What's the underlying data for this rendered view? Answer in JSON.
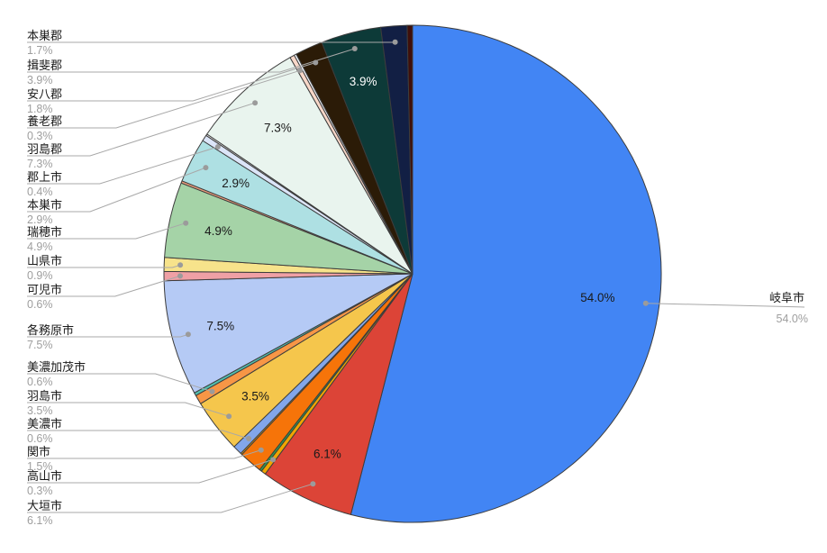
{
  "chart_data": {
    "type": "pie",
    "unit": "%",
    "background": "#ffffff",
    "direction": "clockwise",
    "start_angle_deg": 0,
    "legend_style": "labeled-leader-lines",
    "leader_line_color": "#a8a8a8",
    "leader_dot_color": "#9b9b9b",
    "name_text_color": "#1a1a1a",
    "percent_text_color": "#9e9e9e",
    "slice_border_color": "#3d3d3d",
    "slices": [
      {
        "name": "岐阜市",
        "percent_text": "54.0%",
        "value": 54.0,
        "color": "#4285f4",
        "inside_label": "54.0%",
        "inside_label_color": "#1a1a1a",
        "label_side": "right"
      },
      {
        "name": "大垣市",
        "percent_text": "6.1%",
        "value": 6.1,
        "color": "#dc4437",
        "inside_label": "6.1%",
        "inside_label_color": "#1a1a1a",
        "label_side": "left"
      },
      {
        "name": "高山市",
        "percent_text": "0.3%",
        "value": 0.3,
        "color": "#f0a500",
        "inside_label": "",
        "inside_label_color": "",
        "label_side": "left"
      },
      {
        "name": "",
        "percent_text": "",
        "value": 0.15,
        "color": "#2f9e4e",
        "inside_label": "",
        "inside_label_color": "",
        "label_side": null
      },
      {
        "name": "関市",
        "percent_text": "1.5%",
        "value": 1.5,
        "color": "#f67409",
        "inside_label": "",
        "inside_label_color": "",
        "label_side": "left"
      },
      {
        "name": "",
        "percent_text": "",
        "value": 0.1,
        "color": "#eda514",
        "inside_label": "",
        "inside_label_color": "",
        "label_side": null
      },
      {
        "name": "美濃市",
        "percent_text": "0.6%",
        "value": 0.6,
        "color": "#82a6ea",
        "inside_label": "",
        "inside_label_color": "",
        "label_side": "left"
      },
      {
        "name": "羽島市",
        "percent_text": "3.5%",
        "value": 3.5,
        "color": "#f5c64c",
        "inside_label": "3.5%",
        "inside_label_color": "#1a1a1a",
        "label_side": "left"
      },
      {
        "name": "美濃加茂市",
        "percent_text": "0.6%",
        "value": 0.6,
        "color": "#f79646",
        "inside_label": "",
        "inside_label_color": "",
        "label_side": "left"
      },
      {
        "name": "",
        "percent_text": "",
        "value": 0.2,
        "color": "#52bfae",
        "inside_label": "",
        "inside_label_color": "",
        "label_side": null
      },
      {
        "name": "各務原市",
        "percent_text": "7.5%",
        "value": 7.5,
        "color": "#b5caf5",
        "inside_label": "7.5%",
        "inside_label_color": "#1a1a1a",
        "label_side": "left"
      },
      {
        "name": "可児市",
        "percent_text": "0.6%",
        "value": 0.6,
        "color": "#efa0a5",
        "inside_label": "",
        "inside_label_color": "",
        "label_side": "left"
      },
      {
        "name": "山県市",
        "percent_text": "0.9%",
        "value": 0.9,
        "color": "#f7e38b",
        "inside_label": "",
        "inside_label_color": "",
        "label_side": "left"
      },
      {
        "name": "瑞穂市",
        "percent_text": "4.9%",
        "value": 4.9,
        "color": "#a5d3a7",
        "inside_label": "4.9%",
        "inside_label_color": "#1a1a1a",
        "label_side": "left"
      },
      {
        "name": "",
        "percent_text": "",
        "value": 0.15,
        "color": "#e89b7a",
        "inside_label": "",
        "inside_label_color": "",
        "label_side": null
      },
      {
        "name": "本巣市",
        "percent_text": "2.9%",
        "value": 2.9,
        "color": "#aee0e3",
        "inside_label": "2.9%",
        "inside_label_color": "#1a1a1a",
        "label_side": "left"
      },
      {
        "name": "郡上市",
        "percent_text": "0.4%",
        "value": 0.4,
        "color": "#dce5f8",
        "inside_label": "",
        "inside_label_color": "",
        "label_side": "left"
      },
      {
        "name": "",
        "percent_text": "",
        "value": 0.1,
        "color": "#fdfdfd",
        "inside_label": "",
        "inside_label_color": "",
        "label_side": null
      },
      {
        "name": "羽島郡",
        "percent_text": "7.3%",
        "value": 7.3,
        "color": "#e9f4ee",
        "inside_label": "7.3%",
        "inside_label_color": "#1a1a1a",
        "label_side": "left"
      },
      {
        "name": "養老郡",
        "percent_text": "0.3%",
        "value": 0.3,
        "color": "#f8d7c8",
        "inside_label": "",
        "inside_label_color": "",
        "label_side": "left"
      },
      {
        "name": "",
        "percent_text": "",
        "value": 0.15,
        "color": "#f4f7fd",
        "inside_label": "",
        "inside_label_color": "",
        "label_side": null
      },
      {
        "name": "安八郡",
        "percent_text": "1.8%",
        "value": 1.8,
        "color": "#2b1b07",
        "inside_label": "",
        "inside_label_color": "",
        "label_side": "left"
      },
      {
        "name": "揖斐郡",
        "percent_text": "3.9%",
        "value": 3.9,
        "color": "#0d3a38",
        "inside_label": "3.9%",
        "inside_label_color": "#ffffff",
        "label_side": "left"
      },
      {
        "name": "本巣郡",
        "percent_text": "1.7%",
        "value": 1.7,
        "color": "#121f44",
        "inside_label": "",
        "inside_label_color": "",
        "label_side": "left"
      },
      {
        "name": "",
        "percent_text": "",
        "value": 0.35,
        "color": "#3f0f0a",
        "inside_label": "",
        "inside_label_color": "",
        "label_side": null
      }
    ]
  }
}
